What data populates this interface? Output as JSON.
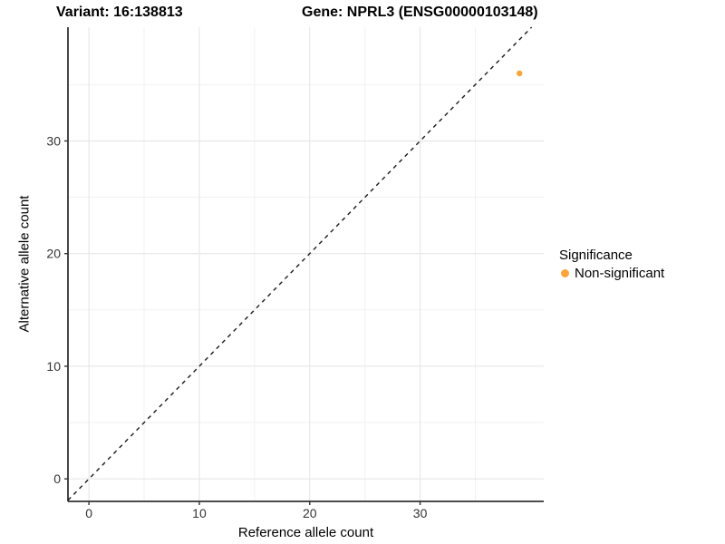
{
  "header": {
    "title_left": "Variant: 16:138813",
    "title_right": "Gene: NPRL3 (ENSG00000103148)"
  },
  "axes": {
    "x_label": "Reference allele count",
    "y_label": "Alternative allele count"
  },
  "legend": {
    "title": "Significance",
    "items": [
      {
        "label": "Non-significant",
        "color": "#FAA43B",
        "marker": "dot"
      }
    ]
  },
  "colors": {
    "point": "#FAA43B",
    "axis_line": "#333333",
    "tick_label": "#333333",
    "grid_major": "#E4E4E4",
    "grid_minor": "#F1F1F1",
    "dashed_line": "#1a1a1a",
    "background": "#FFFFFF"
  },
  "chart_data": {
    "type": "scatter",
    "title": "Variant: 16:138813 / Gene: NPRL3 (ENSG00000103148)",
    "xlabel": "Reference allele count",
    "ylabel": "Alternative allele count",
    "xlim": [
      -1.9,
      41.2
    ],
    "ylim": [
      -2.0,
      40.1
    ],
    "x_major_ticks": [
      0,
      10,
      20,
      30
    ],
    "y_major_ticks": [
      0,
      10,
      20,
      30
    ],
    "x_minor_ticks": [
      5,
      15,
      25,
      35
    ],
    "y_minor_ticks": [
      5,
      15,
      25,
      35
    ],
    "grid": "major+minor",
    "legend_position": "right",
    "series": [
      {
        "name": "Non-significant",
        "color": "#FAA43B",
        "point_radius": 3.2,
        "points": [
          {
            "x": 39,
            "y": 36
          }
        ]
      }
    ],
    "reference_line": {
      "kind": "identity",
      "equation": "y = x",
      "style": "dashed",
      "color": "#1a1a1a"
    }
  }
}
